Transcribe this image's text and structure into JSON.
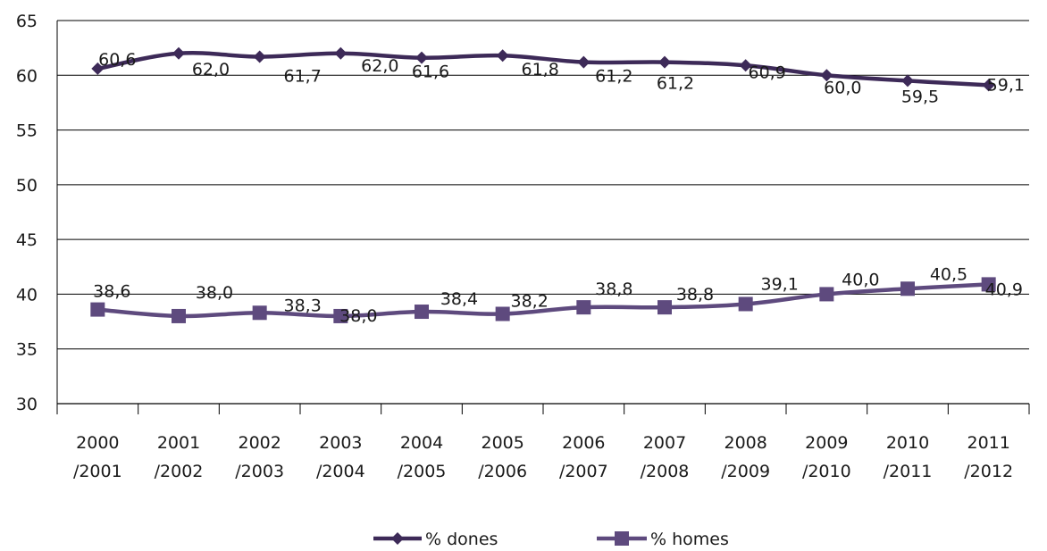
{
  "chart_data": {
    "type": "line",
    "categories": [
      [
        "2000",
        "/2001"
      ],
      [
        "2001",
        "/2002"
      ],
      [
        "2002",
        "/2003"
      ],
      [
        "2003",
        "/2004"
      ],
      [
        "2004",
        "/2005"
      ],
      [
        "2005",
        "/2006"
      ],
      [
        "2006",
        "/2007"
      ],
      [
        "2007",
        "/2008"
      ],
      [
        "2008",
        "/2009"
      ],
      [
        "2009",
        "/2010"
      ],
      [
        "2010",
        "/2011"
      ],
      [
        "2011",
        "/2012"
      ]
    ],
    "series": [
      {
        "name": "% dones",
        "marker": "diamond",
        "color": "#3d2a58",
        "values": [
          60.6,
          62.0,
          61.7,
          62.0,
          61.6,
          61.8,
          61.2,
          61.2,
          60.9,
          60.0,
          59.5,
          59.1
        ],
        "labels": [
          "60,6",
          "62,0",
          "61,7",
          "62,0",
          "61,6",
          "61,8",
          "61,2",
          "61,2",
          "60,9",
          "60,0",
          "59,5",
          "59,1"
        ]
      },
      {
        "name": "% homes",
        "marker": "square",
        "color": "#5e4a7e",
        "values": [
          38.6,
          38.0,
          38.3,
          38.0,
          38.4,
          38.2,
          38.8,
          38.8,
          39.1,
          40.0,
          40.5,
          40.9
        ],
        "labels": [
          "38,6",
          "38,0",
          "38,3",
          "38,0",
          "38,4",
          "38,2",
          "38,8",
          "38,8",
          "39,1",
          "40,0",
          "40,5",
          "40,9"
        ]
      }
    ],
    "ylim": [
      30,
      65
    ],
    "yticks": [
      "30",
      "35",
      "40",
      "45",
      "50",
      "55",
      "60",
      "65"
    ],
    "grid": true,
    "legend": "bottom-center",
    "title": "",
    "xlabel": "",
    "ylabel": ""
  }
}
